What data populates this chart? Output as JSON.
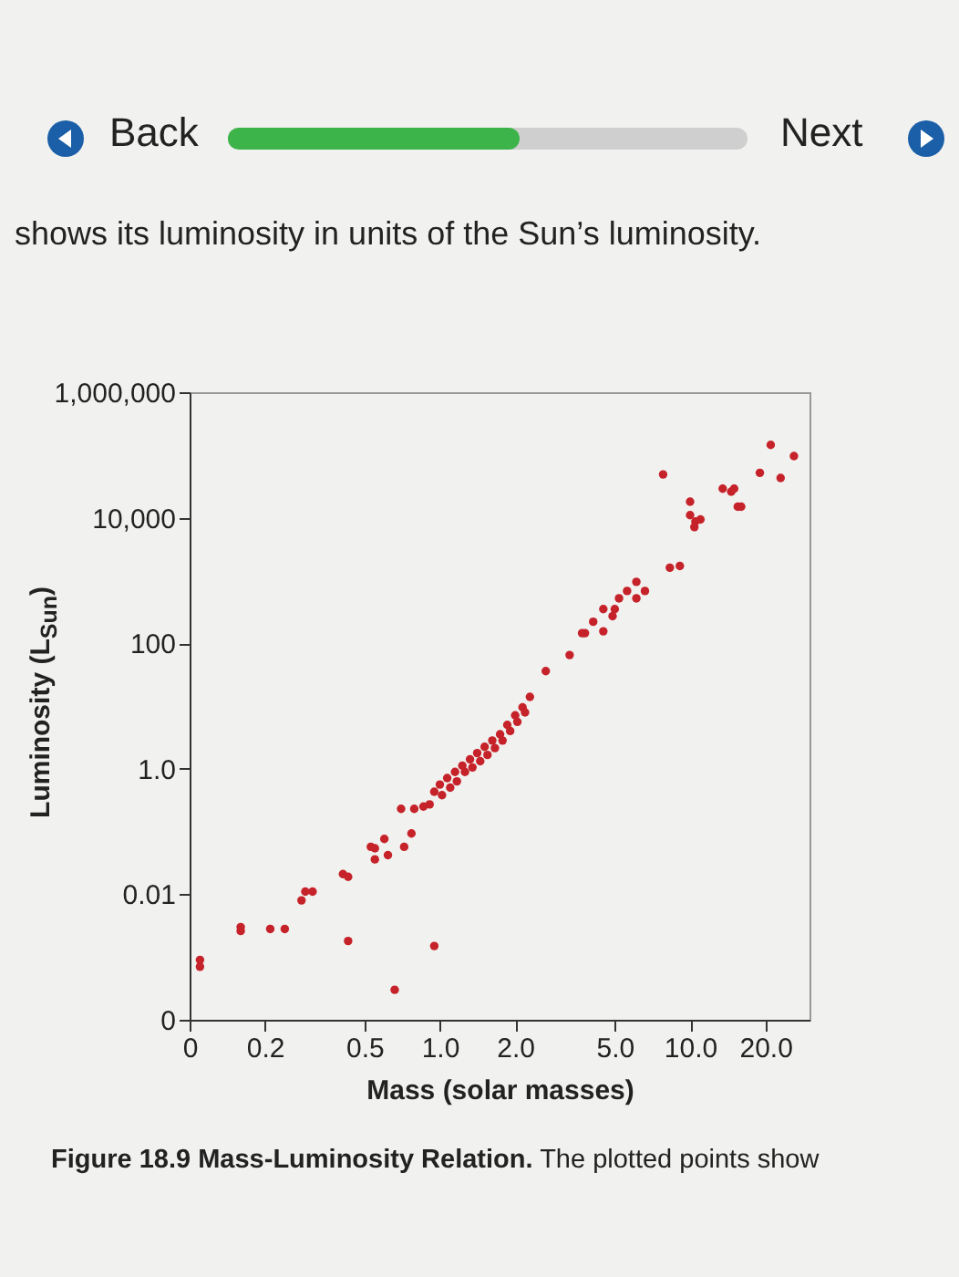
{
  "chart_data": {
    "type": "scatter",
    "xlabel": "Mass (solar masses)",
    "ylabel": "Luminosity (L$_{Sun}$)",
    "annotations": [
      "Back",
      "Next",
      "shows its luminosity in units of the Sun’s luminosity.",
      "Figure 18.9 Mass-Luminosity Relation. The plotted points show"
    ],
    "log": "xy",
    "grid": false,
    "marker": "circle",
    "legend": false,
    "xlim": [
      0.1,
      30
    ],
    "xticks": [
      {
        "value": 0.1,
        "label": "0"
      },
      0.2,
      0.5,
      {
        "value": 1,
        "label": "1.0"
      },
      {
        "value": 2,
        "label": "2.0"
      },
      {
        "value": 5,
        "label": "5.0"
      },
      {
        "value": 10,
        "label": "10.0"
      },
      {
        "value": 20,
        "label": "20.0"
      }
    ],
    "ylim": [
      0.0001,
      1000000
    ],
    "yticks": [
      {
        "value": 0.0001,
        "label": "0"
      },
      0.01,
      {
        "value": 1,
        "label": "1.0"
      },
      100,
      {
        "value": 10000,
        "label": "10,000"
      },
      {
        "value": 1000000,
        "label": "1,000,000"
      }
    ],
    "series": [
      {
        "color": "#c62229",
        "x": [
          0.11,
          0.11,
          0.16,
          0.16,
          0.21,
          0.24,
          0.28,
          0.29,
          0.31,
          0.41,
          0.43,
          0.43,
          0.53,
          0.66,
          0.95,
          0.55,
          0.6,
          0.55,
          0.62,
          0.72,
          0.77,
          0.7,
          0.79,
          0.86,
          0.91,
          0.95,
          1.0,
          1.02,
          1.07,
          1.1,
          1.15,
          1.17,
          1.23,
          1.26,
          1.32,
          1.35,
          1.41,
          1.45,
          1.51,
          1.55,
          1.62,
          1.66,
          1.74,
          1.78,
          1.86,
          1.91,
          2.0,
          2.04,
          2.14,
          2.19,
          2.29,
          2.65,
          3.3,
          3.7,
          3.8,
          4.1,
          4.5,
          4.5,
          4.9,
          5.0,
          5.2,
          5.6,
          6.1,
          6.1,
          6.6,
          8.3,
          9.1,
          7.8,
          10,
          10,
          10.5,
          10.4,
          11,
          13.5,
          14.6,
          15,
          15.5,
          16,
          19,
          21,
          23,
          26
        ],
        "values": [
          0.0009,
          0.0007,
          0.003,
          0.0026,
          0.0028,
          0.0028,
          0.008,
          0.011,
          0.011,
          0.021,
          0.019,
          0.0018,
          0.057,
          0.0003,
          0.0015,
          0.054,
          0.076,
          0.036,
          0.042,
          0.057,
          0.093,
          0.23,
          0.23,
          0.25,
          0.27,
          0.43,
          0.56,
          0.38,
          0.71,
          0.5,
          0.89,
          0.63,
          1.12,
          0.89,
          1.41,
          1.05,
          1.78,
          1.32,
          2.24,
          1.66,
          2.82,
          2.14,
          3.55,
          2.82,
          5,
          4,
          7.1,
          5.6,
          9.5,
          7.9,
          14,
          36,
          65,
          145,
          145,
          220,
          350,
          155,
          270,
          350,
          520,
          680,
          950,
          520,
          680,
          1600,
          1700,
          49000,
          18000,
          11000,
          8700,
          7100,
          9400,
          29000,
          26000,
          29000,
          15000,
          15000,
          52000,
          145000,
          43000,
          96000
        ]
      }
    ]
  }
}
